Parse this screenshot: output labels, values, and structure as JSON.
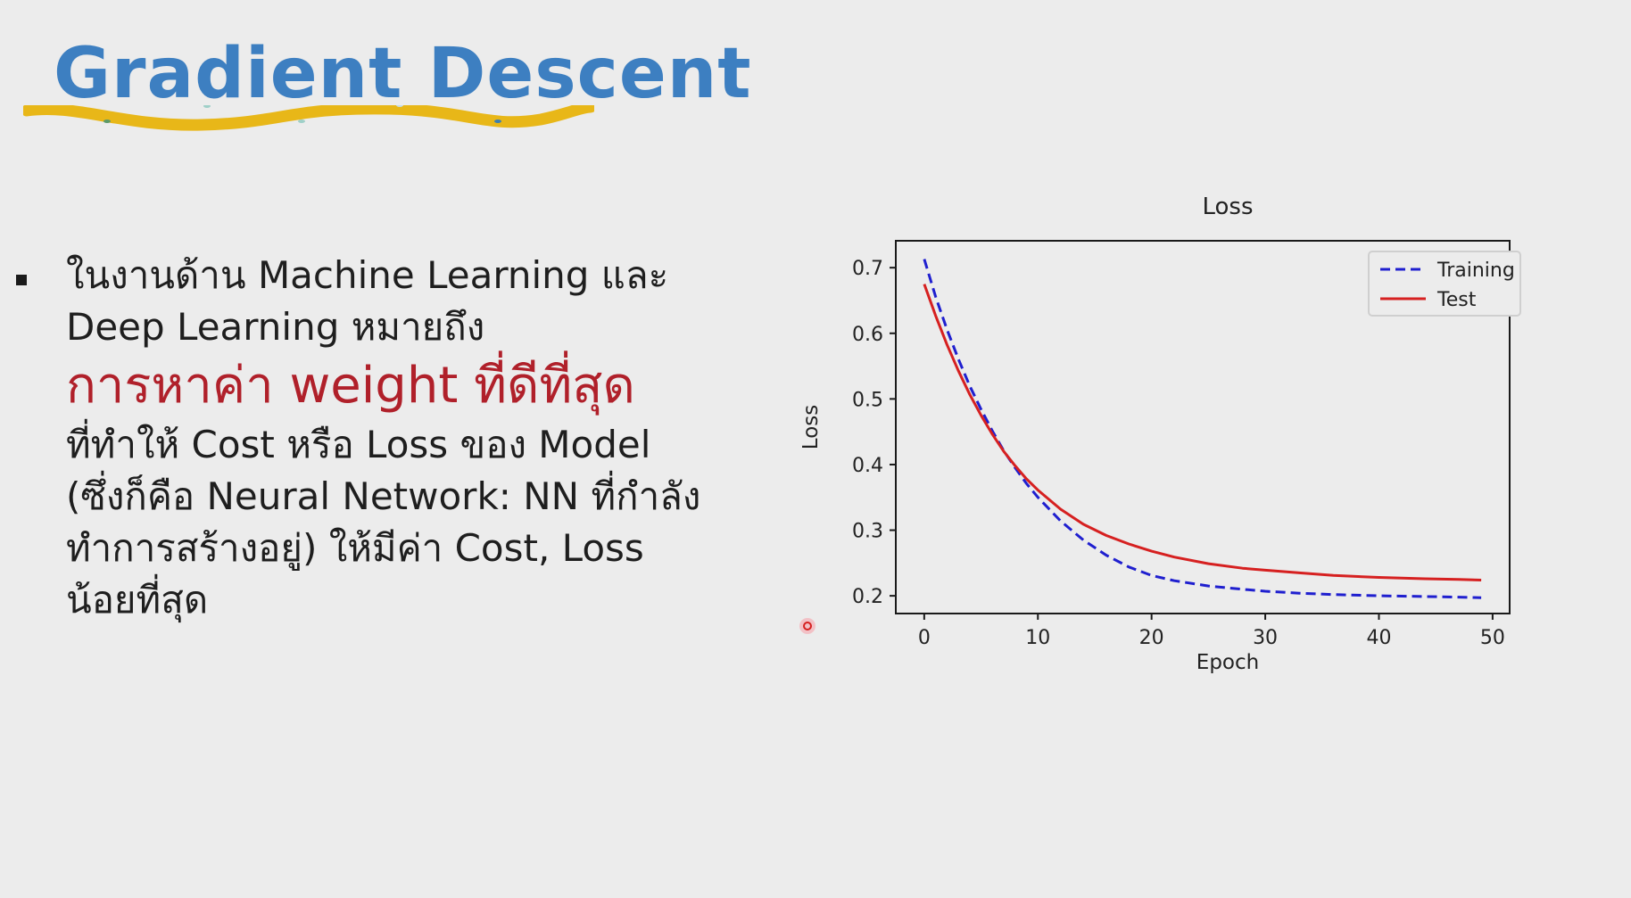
{
  "slide": {
    "title": "Gradient Descent",
    "wave_color": "#e8b718",
    "title_color": "#3d7fc1",
    "body_lines": [
      "ในงานด้าน Machine Learning และ",
      "Deep Learning หมายถึง"
    ],
    "highlight": "การหาค่า weight ที่ดีที่สุด",
    "highlight_color": "#b0202a",
    "body_lines_after": [
      "ที่ทำให้ Cost หรือ Loss ของ Model",
      "(ซึ่งก็คือ Neural Network: NN ที่กำลัง",
      "ทำการสร้างอยู่) ให้มีค่า Cost, Loss",
      "น้อยที่สุด"
    ]
  },
  "chart_data": {
    "type": "line",
    "title": "Loss",
    "xlabel": "Epoch",
    "ylabel": "Loss",
    "xlim": [
      -2.5,
      51.5
    ],
    "ylim": [
      0.173,
      0.741
    ],
    "xticks": [
      0,
      10,
      20,
      30,
      40,
      50
    ],
    "yticks": [
      0.2,
      0.3,
      0.4,
      0.5,
      0.6,
      0.7
    ],
    "legend_position": "top-right",
    "grid": false,
    "x": [
      0,
      1,
      2,
      3,
      4,
      5,
      6,
      7,
      8,
      9,
      10,
      12,
      14,
      16,
      18,
      20,
      22,
      25,
      28,
      30,
      33,
      36,
      40,
      44,
      47,
      49
    ],
    "series": [
      {
        "name": "Training",
        "color": "#1f1fcf",
        "style": "dashed",
        "values": [
          0.713,
          0.656,
          0.606,
          0.561,
          0.52,
          0.484,
          0.451,
          0.421,
          0.395,
          0.371,
          0.35,
          0.314,
          0.285,
          0.262,
          0.244,
          0.231,
          0.223,
          0.215,
          0.21,
          0.207,
          0.204,
          0.202,
          0.2,
          0.199,
          0.198,
          0.197
        ]
      },
      {
        "name": "Test",
        "color": "#d62020",
        "style": "solid",
        "values": [
          0.675,
          0.627,
          0.583,
          0.543,
          0.507,
          0.475,
          0.446,
          0.42,
          0.398,
          0.378,
          0.361,
          0.332,
          0.309,
          0.292,
          0.279,
          0.268,
          0.259,
          0.249,
          0.242,
          0.239,
          0.235,
          0.231,
          0.228,
          0.226,
          0.225,
          0.224
        ]
      }
    ]
  }
}
